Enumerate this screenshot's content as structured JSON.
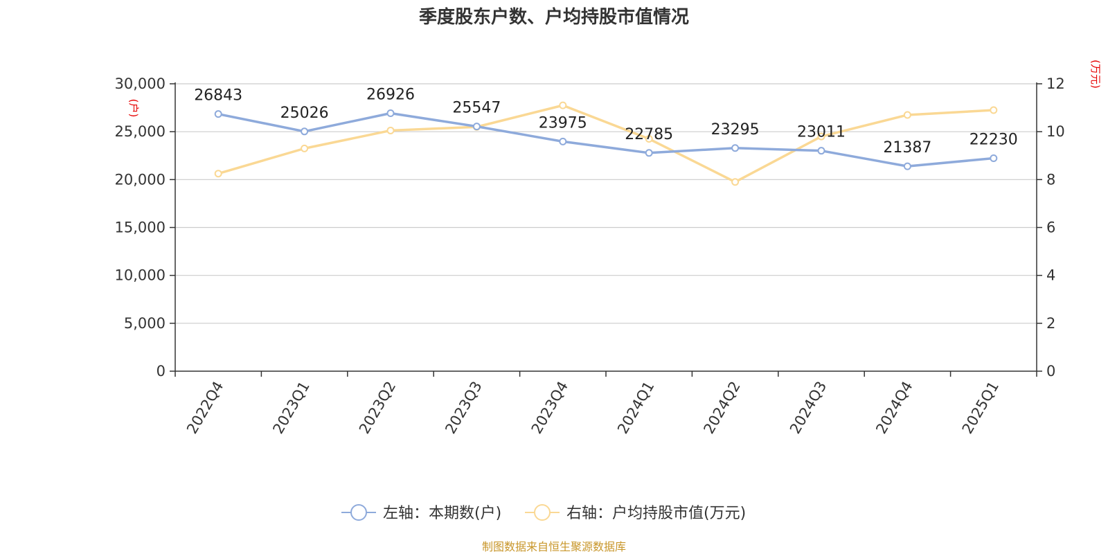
{
  "title": "季度股东户数、户均持股市值情况",
  "source": "制图数据来自恒生聚源数据库",
  "colors": {
    "left_series": "#8eaadb",
    "right_series": "#fad894",
    "unit": "#e60000",
    "source": "#c8962a"
  },
  "chart_data": {
    "type": "line",
    "categories": [
      "2022Q4",
      "2023Q1",
      "2023Q2",
      "2023Q3",
      "2023Q4",
      "2024Q1",
      "2024Q2",
      "2024Q3",
      "2024Q4",
      "2025Q1"
    ],
    "series": [
      {
        "name": "左轴：本期数(户)",
        "axis": "left",
        "values": [
          26843,
          25026,
          26926,
          25547,
          23975,
          22785,
          23295,
          23011,
          21387,
          22230
        ]
      },
      {
        "name": "右轴：户均持股市值(万元)",
        "axis": "right",
        "values": [
          8.25,
          9.3,
          10.05,
          10.2,
          11.1,
          9.7,
          7.9,
          9.8,
          10.7,
          10.9
        ]
      }
    ],
    "left_axis": {
      "unit": "(户)",
      "ylim": [
        0,
        30000
      ],
      "ticks": [
        0,
        5000,
        10000,
        15000,
        20000,
        25000,
        30000
      ],
      "tick_labels": [
        "0",
        "5,000",
        "10,000",
        "15,000",
        "20,000",
        "25,000",
        "30,000"
      ]
    },
    "right_axis": {
      "unit": "(万元)",
      "ylim": [
        0,
        12
      ],
      "ticks": [
        0,
        2,
        4,
        6,
        8,
        10,
        12
      ],
      "tick_labels": [
        "0",
        "2",
        "4",
        "6",
        "8",
        "10",
        "12"
      ]
    },
    "grid": true,
    "legend_position": "bottom-center",
    "data_labels_series": "left"
  }
}
